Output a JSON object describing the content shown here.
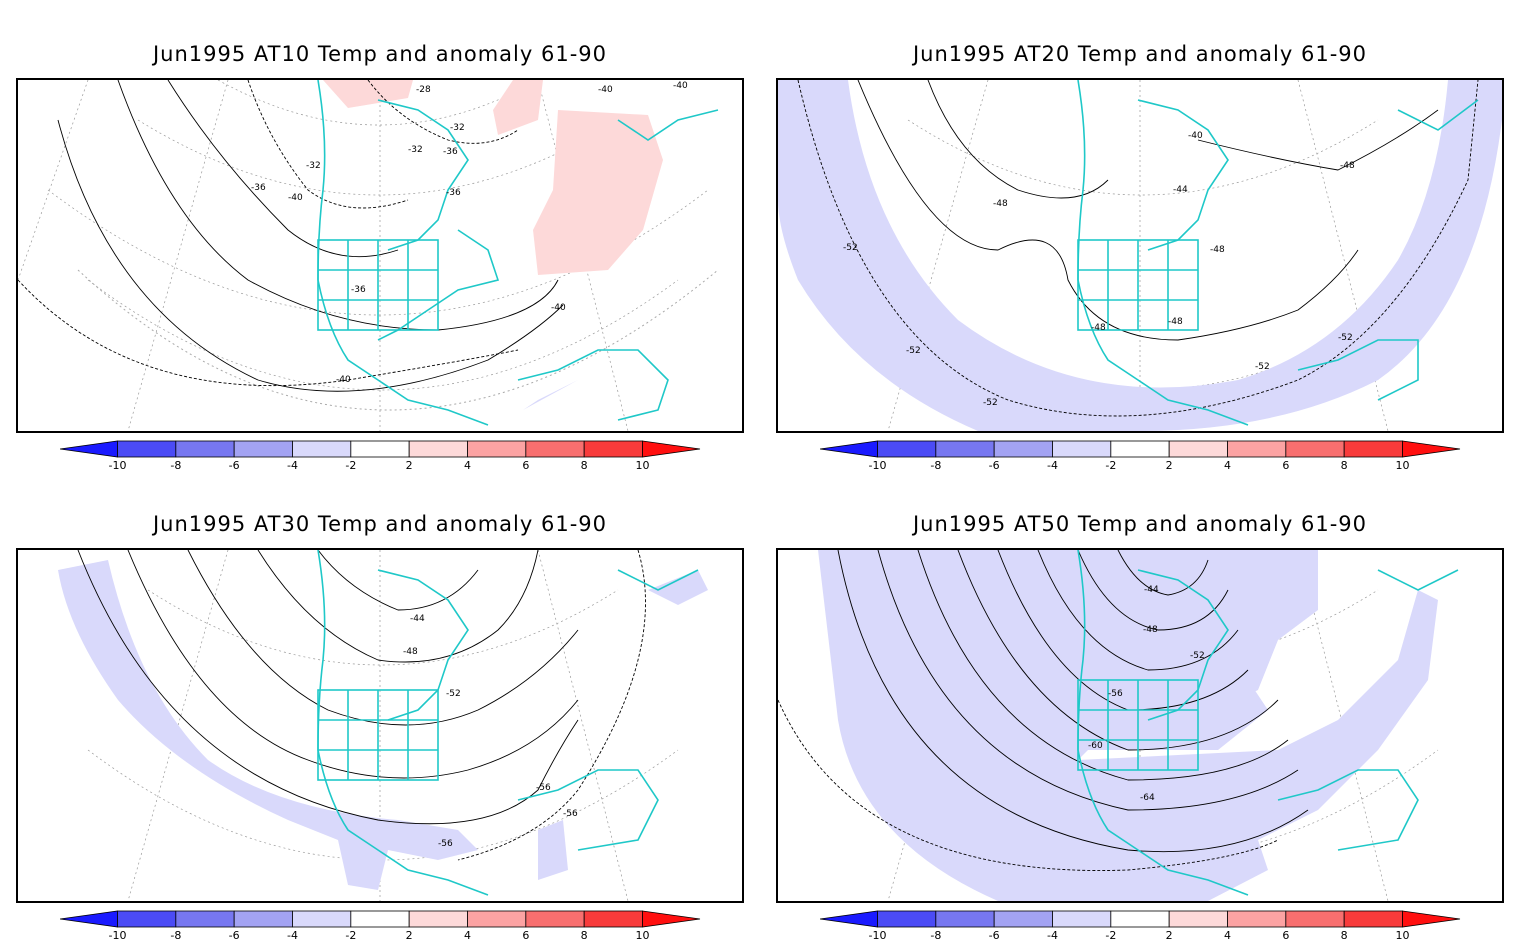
{
  "panels": [
    {
      "title": "Jun1995 AT10 Temp and anomaly 61-90",
      "contour_labels": [
        "-28",
        "-32",
        "-32",
        "-32",
        "-36",
        "-36",
        "-36",
        "-36",
        "-40",
        "-40",
        "-40",
        "-40",
        "-40"
      ],
      "anomaly_regions": [
        "positive",
        "positive",
        "positive",
        "negative"
      ]
    },
    {
      "title": "Jun1995 AT20 Temp and anomaly 61-90",
      "contour_labels": [
        "-40",
        "-44",
        "-48",
        "-48",
        "-48",
        "-48",
        "-48",
        "-52",
        "-52",
        "-52",
        "-52",
        "-52"
      ],
      "anomaly_regions": [
        "negative",
        "negative"
      ]
    },
    {
      "title": "Jun1995 AT30 Temp and anomaly 61-90",
      "contour_labels": [
        "-44",
        "-48",
        "-52",
        "-56",
        "-56",
        "-56"
      ],
      "anomaly_regions": [
        "negative",
        "negative",
        "negative"
      ]
    },
    {
      "title": "Jun1995 AT50 Temp and anomaly 61-90",
      "contour_labels": [
        "-44",
        "-48",
        "-52",
        "-56",
        "-60",
        "-64"
      ],
      "anomaly_regions": [
        "negative",
        "negative"
      ]
    }
  ],
  "colorbar": {
    "tick_labels": [
      "-10",
      "-8",
      "-6",
      "-4",
      "-2",
      "2",
      "4",
      "6",
      "8",
      "10"
    ],
    "colors": [
      "#1a1aff",
      "#4b4bf5",
      "#7777f0",
      "#a3a3f3",
      "#d9d9fb",
      "#ffffff",
      "#fdd9d9",
      "#fca3a3",
      "#f86f6f",
      "#f83b3b",
      "#ff0f0f"
    ]
  },
  "coastline_color": "#1fc8c8"
}
